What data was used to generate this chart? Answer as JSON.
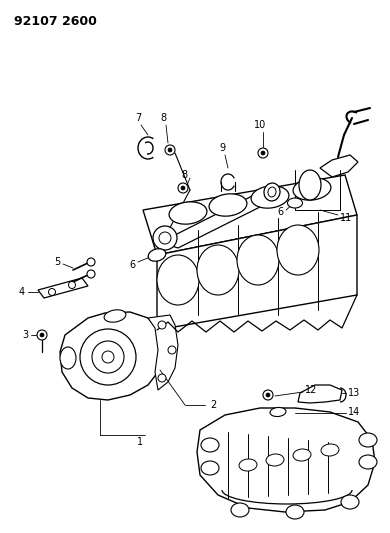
{
  "title": "92107 2600",
  "bg_color": "#ffffff",
  "fig_width": 3.9,
  "fig_height": 5.33,
  "dpi": 100,
  "title_fontsize": 9,
  "title_fontweight": "bold",
  "label_fontsize": 7
}
